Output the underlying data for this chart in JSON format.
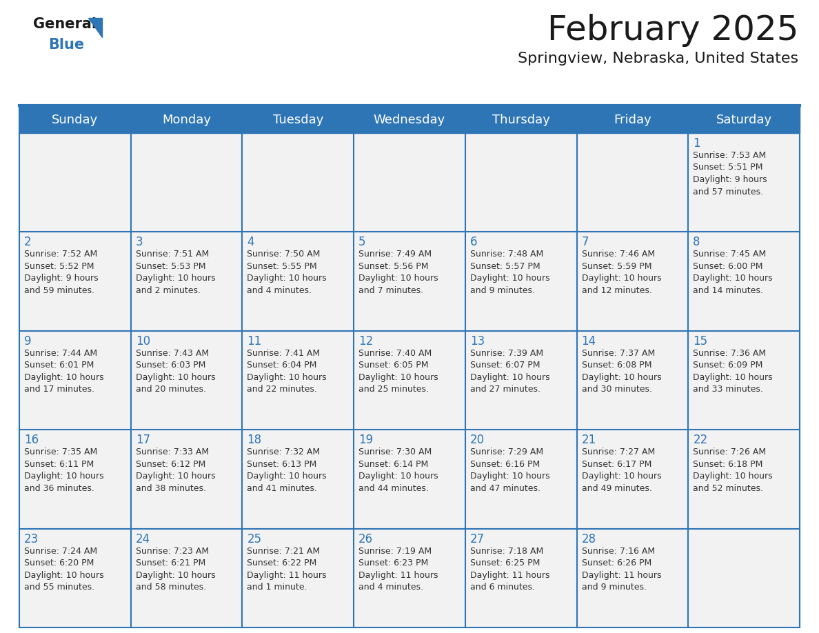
{
  "title": "February 2025",
  "subtitle": "Springview, Nebraska, United States",
  "header_bg": "#2E75B6",
  "header_text_color": "#FFFFFF",
  "cell_bg": "#F2F2F2",
  "day_number_color": "#2E75B6",
  "cell_text_color": "#333333",
  "border_color": "#2E75B6",
  "logo_general_color": "#1a1a1a",
  "logo_blue_color": "#2E75B6",
  "logo_triangle_color": "#2E75B6",
  "days_of_week": [
    "Sunday",
    "Monday",
    "Tuesday",
    "Wednesday",
    "Thursday",
    "Friday",
    "Saturday"
  ],
  "weeks": [
    [
      {
        "day": "",
        "info": ""
      },
      {
        "day": "",
        "info": ""
      },
      {
        "day": "",
        "info": ""
      },
      {
        "day": "",
        "info": ""
      },
      {
        "day": "",
        "info": ""
      },
      {
        "day": "",
        "info": ""
      },
      {
        "day": "1",
        "info": "Sunrise: 7:53 AM\nSunset: 5:51 PM\nDaylight: 9 hours\nand 57 minutes."
      }
    ],
    [
      {
        "day": "2",
        "info": "Sunrise: 7:52 AM\nSunset: 5:52 PM\nDaylight: 9 hours\nand 59 minutes."
      },
      {
        "day": "3",
        "info": "Sunrise: 7:51 AM\nSunset: 5:53 PM\nDaylight: 10 hours\nand 2 minutes."
      },
      {
        "day": "4",
        "info": "Sunrise: 7:50 AM\nSunset: 5:55 PM\nDaylight: 10 hours\nand 4 minutes."
      },
      {
        "day": "5",
        "info": "Sunrise: 7:49 AM\nSunset: 5:56 PM\nDaylight: 10 hours\nand 7 minutes."
      },
      {
        "day": "6",
        "info": "Sunrise: 7:48 AM\nSunset: 5:57 PM\nDaylight: 10 hours\nand 9 minutes."
      },
      {
        "day": "7",
        "info": "Sunrise: 7:46 AM\nSunset: 5:59 PM\nDaylight: 10 hours\nand 12 minutes."
      },
      {
        "day": "8",
        "info": "Sunrise: 7:45 AM\nSunset: 6:00 PM\nDaylight: 10 hours\nand 14 minutes."
      }
    ],
    [
      {
        "day": "9",
        "info": "Sunrise: 7:44 AM\nSunset: 6:01 PM\nDaylight: 10 hours\nand 17 minutes."
      },
      {
        "day": "10",
        "info": "Sunrise: 7:43 AM\nSunset: 6:03 PM\nDaylight: 10 hours\nand 20 minutes."
      },
      {
        "day": "11",
        "info": "Sunrise: 7:41 AM\nSunset: 6:04 PM\nDaylight: 10 hours\nand 22 minutes."
      },
      {
        "day": "12",
        "info": "Sunrise: 7:40 AM\nSunset: 6:05 PM\nDaylight: 10 hours\nand 25 minutes."
      },
      {
        "day": "13",
        "info": "Sunrise: 7:39 AM\nSunset: 6:07 PM\nDaylight: 10 hours\nand 27 minutes."
      },
      {
        "day": "14",
        "info": "Sunrise: 7:37 AM\nSunset: 6:08 PM\nDaylight: 10 hours\nand 30 minutes."
      },
      {
        "day": "15",
        "info": "Sunrise: 7:36 AM\nSunset: 6:09 PM\nDaylight: 10 hours\nand 33 minutes."
      }
    ],
    [
      {
        "day": "16",
        "info": "Sunrise: 7:35 AM\nSunset: 6:11 PM\nDaylight: 10 hours\nand 36 minutes."
      },
      {
        "day": "17",
        "info": "Sunrise: 7:33 AM\nSunset: 6:12 PM\nDaylight: 10 hours\nand 38 minutes."
      },
      {
        "day": "18",
        "info": "Sunrise: 7:32 AM\nSunset: 6:13 PM\nDaylight: 10 hours\nand 41 minutes."
      },
      {
        "day": "19",
        "info": "Sunrise: 7:30 AM\nSunset: 6:14 PM\nDaylight: 10 hours\nand 44 minutes."
      },
      {
        "day": "20",
        "info": "Sunrise: 7:29 AM\nSunset: 6:16 PM\nDaylight: 10 hours\nand 47 minutes."
      },
      {
        "day": "21",
        "info": "Sunrise: 7:27 AM\nSunset: 6:17 PM\nDaylight: 10 hours\nand 49 minutes."
      },
      {
        "day": "22",
        "info": "Sunrise: 7:26 AM\nSunset: 6:18 PM\nDaylight: 10 hours\nand 52 minutes."
      }
    ],
    [
      {
        "day": "23",
        "info": "Sunrise: 7:24 AM\nSunset: 6:20 PM\nDaylight: 10 hours\nand 55 minutes."
      },
      {
        "day": "24",
        "info": "Sunrise: 7:23 AM\nSunset: 6:21 PM\nDaylight: 10 hours\nand 58 minutes."
      },
      {
        "day": "25",
        "info": "Sunrise: 7:21 AM\nSunset: 6:22 PM\nDaylight: 11 hours\nand 1 minute."
      },
      {
        "day": "26",
        "info": "Sunrise: 7:19 AM\nSunset: 6:23 PM\nDaylight: 11 hours\nand 4 minutes."
      },
      {
        "day": "27",
        "info": "Sunrise: 7:18 AM\nSunset: 6:25 PM\nDaylight: 11 hours\nand 6 minutes."
      },
      {
        "day": "28",
        "info": "Sunrise: 7:16 AM\nSunset: 6:26 PM\nDaylight: 11 hours\nand 9 minutes."
      },
      {
        "day": "",
        "info": ""
      }
    ]
  ],
  "figsize": [
    11.88,
    9.18
  ],
  "dpi": 100,
  "title_fontsize": 36,
  "subtitle_fontsize": 16,
  "header_fontsize": 13,
  "day_num_fontsize": 12,
  "cell_text_fontsize": 9
}
